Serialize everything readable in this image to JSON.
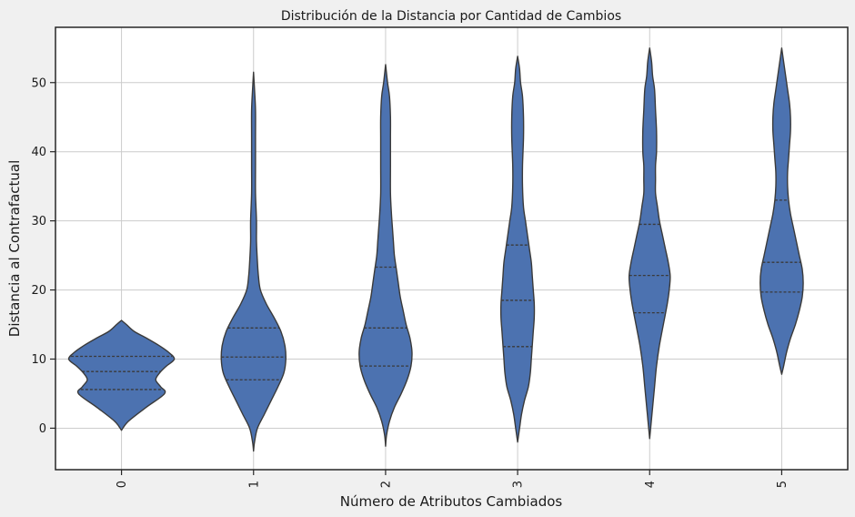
{
  "chart_data": {
    "type": "violin",
    "title": "Distribución de la Distancia por Cantidad de Cambios",
    "xlabel": "Número de Atributos Cambiados",
    "ylabel": "Distancia al Contrafactual",
    "categories": [
      "0",
      "1",
      "2",
      "3",
      "4",
      "5"
    ],
    "ylim": [
      -6,
      58
    ],
    "yticks": [
      0,
      10,
      20,
      30,
      40,
      50
    ],
    "grid": true,
    "color": "#4c72b0",
    "outline_color": "#3a3a3a",
    "violins": [
      {
        "category": "0",
        "quartiles": [
          5.6,
          8.2,
          10.4
        ],
        "profile": [
          [
            -0.3,
            0.0
          ],
          [
            1,
            7
          ],
          [
            3,
            25
          ],
          [
            5,
            44
          ],
          [
            6,
            40
          ],
          [
            7,
            35
          ],
          [
            8,
            39
          ],
          [
            9,
            46
          ],
          [
            10,
            54
          ],
          [
            11,
            48
          ],
          [
            12,
            38
          ],
          [
            13,
            26
          ],
          [
            14,
            13
          ],
          [
            15,
            5
          ],
          [
            15.6,
            0.0
          ]
        ]
      },
      {
        "category": "1",
        "quartiles": [
          7.0,
          10.3,
          14.5
        ],
        "profile": [
          [
            -3.3,
            0.0
          ],
          [
            -2,
            1
          ],
          [
            0,
            4
          ],
          [
            2,
            11
          ],
          [
            4,
            18
          ],
          [
            6,
            25
          ],
          [
            8,
            31
          ],
          [
            10,
            33
          ],
          [
            12,
            32
          ],
          [
            14,
            28
          ],
          [
            16,
            21
          ],
          [
            18,
            13
          ],
          [
            20,
            7
          ],
          [
            22,
            5
          ],
          [
            24,
            4
          ],
          [
            27,
            3
          ],
          [
            30,
            3
          ],
          [
            34,
            2
          ],
          [
            38,
            2
          ],
          [
            42,
            2
          ],
          [
            46,
            2
          ],
          [
            49,
            1
          ],
          [
            51.5,
            0.0
          ]
        ]
      },
      {
        "category": "2",
        "quartiles": [
          9.0,
          14.5,
          23.3
        ],
        "profile": [
          [
            -2.6,
            0.0
          ],
          [
            -1,
            1
          ],
          [
            1,
            4
          ],
          [
            3,
            9
          ],
          [
            5,
            16
          ],
          [
            7,
            22
          ],
          [
            9,
            26
          ],
          [
            11,
            27
          ],
          [
            13,
            25
          ],
          [
            15,
            21
          ],
          [
            17,
            18
          ],
          [
            19,
            15
          ],
          [
            21,
            13
          ],
          [
            23,
            11
          ],
          [
            25,
            9
          ],
          [
            27,
            8
          ],
          [
            29,
            7
          ],
          [
            31,
            6
          ],
          [
            34,
            5
          ],
          [
            38,
            5
          ],
          [
            42,
            5
          ],
          [
            45,
            5
          ],
          [
            48,
            4
          ],
          [
            50,
            2
          ],
          [
            52.6,
            0.0
          ]
        ]
      },
      {
        "category": "3",
        "quartiles": [
          11.8,
          18.5,
          26.5
        ],
        "profile": [
          [
            -2.0,
            0.0
          ],
          [
            0,
            2
          ],
          [
            2,
            4
          ],
          [
            4,
            7
          ],
          [
            6,
            11
          ],
          [
            8,
            13
          ],
          [
            10,
            14
          ],
          [
            12,
            15
          ],
          [
            14,
            16
          ],
          [
            16,
            17
          ],
          [
            18,
            17
          ],
          [
            20,
            16
          ],
          [
            22,
            15
          ],
          [
            24,
            14
          ],
          [
            26,
            12
          ],
          [
            28,
            10
          ],
          [
            30,
            8
          ],
          [
            32,
            6
          ],
          [
            35,
            5
          ],
          [
            38,
            5
          ],
          [
            42,
            6
          ],
          [
            45,
            6
          ],
          [
            48,
            5
          ],
          [
            50,
            3
          ],
          [
            52,
            2
          ],
          [
            53.8,
            0.0
          ]
        ]
      },
      {
        "category": "4",
        "quartiles": [
          16.7,
          22.1,
          29.5
        ],
        "profile": [
          [
            -1.5,
            0.0
          ],
          [
            0,
            1
          ],
          [
            3,
            3
          ],
          [
            6,
            5
          ],
          [
            9,
            7
          ],
          [
            12,
            10
          ],
          [
            15,
            14
          ],
          [
            18,
            18
          ],
          [
            20,
            20
          ],
          [
            22,
            21
          ],
          [
            24,
            19
          ],
          [
            26,
            16
          ],
          [
            28,
            13
          ],
          [
            30,
            10
          ],
          [
            32,
            8
          ],
          [
            34,
            6
          ],
          [
            36,
            6
          ],
          [
            38,
            6
          ],
          [
            40,
            7
          ],
          [
            43,
            7
          ],
          [
            46,
            6
          ],
          [
            49,
            5
          ],
          [
            51,
            3
          ],
          [
            53,
            2
          ],
          [
            55,
            0.0
          ]
        ]
      },
      {
        "category": "5",
        "quartiles": [
          19.7,
          24.0,
          33.0
        ],
        "profile": [
          [
            7.8,
            0.0
          ],
          [
            9,
            2
          ],
          [
            11,
            5
          ],
          [
            13,
            9
          ],
          [
            15,
            14
          ],
          [
            17,
            18
          ],
          [
            19,
            21
          ],
          [
            21,
            22
          ],
          [
            23,
            21
          ],
          [
            25,
            18
          ],
          [
            27,
            15
          ],
          [
            29,
            12
          ],
          [
            31,
            9
          ],
          [
            33,
            7
          ],
          [
            35,
            6
          ],
          [
            37,
            6
          ],
          [
            39,
            7
          ],
          [
            41,
            8
          ],
          [
            43,
            9
          ],
          [
            45,
            9
          ],
          [
            47,
            8
          ],
          [
            49,
            6
          ],
          [
            51,
            4
          ],
          [
            53,
            2
          ],
          [
            55,
            0.0
          ]
        ]
      }
    ]
  }
}
